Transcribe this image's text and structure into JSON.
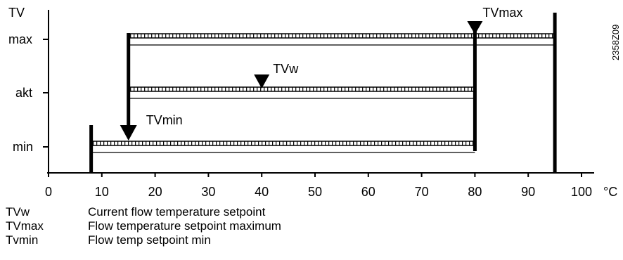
{
  "figure_id": "2358Z09",
  "y_axis": {
    "label": "TV",
    "levels": [
      {
        "key": "max",
        "label": "max"
      },
      {
        "key": "akt",
        "label": "akt"
      },
      {
        "key": "min",
        "label": "min"
      }
    ]
  },
  "x_axis": {
    "unit": "°C",
    "ticks": [
      "0",
      "10",
      "20",
      "30",
      "40",
      "50",
      "60",
      "70",
      "80",
      "90",
      "100"
    ],
    "range": [
      0,
      100
    ]
  },
  "limits": {
    "low_limit_temp": 8,
    "high_limit_temp": 95
  },
  "bands": [
    {
      "level": "max",
      "from": 15,
      "to": 95
    },
    {
      "level": "akt",
      "from": 15,
      "to": 80
    },
    {
      "level": "min",
      "from": 8,
      "to": 80
    }
  ],
  "markers": [
    {
      "key": "TVw",
      "label": "TVw",
      "temp": 40,
      "level": "akt"
    },
    {
      "key": "TVmax",
      "label": "TVmax",
      "temp": 80,
      "level": "max"
    },
    {
      "key": "TVmin",
      "label": "TVmin",
      "temp": 15,
      "level": "min"
    }
  ],
  "legend": [
    {
      "key": "TVw",
      "description": "Current flow temperature setpoint"
    },
    {
      "key": "TVmax",
      "description": "Flow temperature setpoint maximum"
    },
    {
      "key": "Tvmin",
      "description": "Flow temp setpoint min"
    }
  ]
}
